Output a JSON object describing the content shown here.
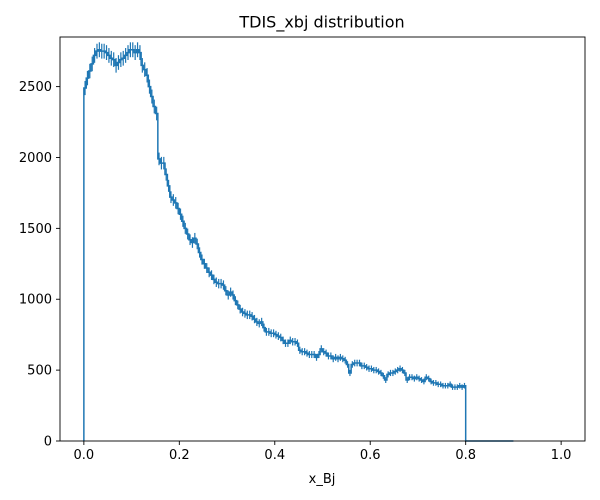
{
  "chart_data": {
    "type": "histogram",
    "title": "TDIS_xbj distribution",
    "xlabel": "x_Bj",
    "ylabel": "",
    "xlim": [
      -0.05,
      1.05
    ],
    "ylim": [
      0,
      2850
    ],
    "x_ticks": [
      0.0,
      0.2,
      0.4,
      0.6,
      0.8,
      1.0
    ],
    "x_tick_labels": [
      "0.0",
      "0.2",
      "0.4",
      "0.6",
      "0.8",
      "1.0"
    ],
    "y_ticks": [
      0,
      500,
      1000,
      1500,
      2000,
      2500
    ],
    "y_tick_labels": [
      "0",
      "500",
      "1000",
      "1500",
      "2000",
      "2500"
    ],
    "grid": false,
    "legend": "none",
    "color": "#1f77b4",
    "bin_width": 0.005,
    "bins_start": 0.0,
    "values": [
      2490,
      2560,
      2610,
      2660,
      2720,
      2750,
      2760,
      2750,
      2750,
      2740,
      2720,
      2700,
      2690,
      2650,
      2670,
      2690,
      2700,
      2720,
      2740,
      2760,
      2760,
      2740,
      2760,
      2740,
      2650,
      2620,
      2580,
      2500,
      2430,
      2360,
      2310,
      1990,
      1960,
      1960,
      1880,
      1800,
      1720,
      1700,
      1680,
      1640,
      1600,
      1550,
      1500,
      1460,
      1420,
      1400,
      1430,
      1390,
      1330,
      1280,
      1250,
      1220,
      1190,
      1170,
      1140,
      1120,
      1110,
      1110,
      1100,
      1060,
      1030,
      1050,
      1030,
      990,
      960,
      930,
      910,
      900,
      890,
      890,
      880,
      860,
      840,
      830,
      840,
      800,
      770,
      770,
      760,
      760,
      750,
      740,
      730,
      710,
      690,
      690,
      710,
      700,
      700,
      690,
      640,
      630,
      630,
      620,
      610,
      610,
      610,
      590,
      610,
      650,
      630,
      620,
      600,
      600,
      580,
      590,
      580,
      590,
      580,
      570,
      540,
      480,
      540,
      550,
      550,
      550,
      530,
      530,
      520,
      510,
      510,
      500,
      500,
      490,
      480,
      460,
      430,
      470,
      480,
      480,
      490,
      500,
      510,
      500,
      480,
      430,
      450,
      450,
      440,
      450,
      440,
      430,
      420,
      450,
      440,
      420,
      410,
      410,
      400,
      400,
      390,
      390,
      390,
      400,
      380,
      380,
      380,
      390,
      380,
      390,
      0,
      0,
      0,
      0,
      0,
      0,
      0,
      0,
      0,
      0,
      0,
      0,
      0,
      0,
      0,
      0,
      0,
      0,
      0,
      0
    ]
  }
}
